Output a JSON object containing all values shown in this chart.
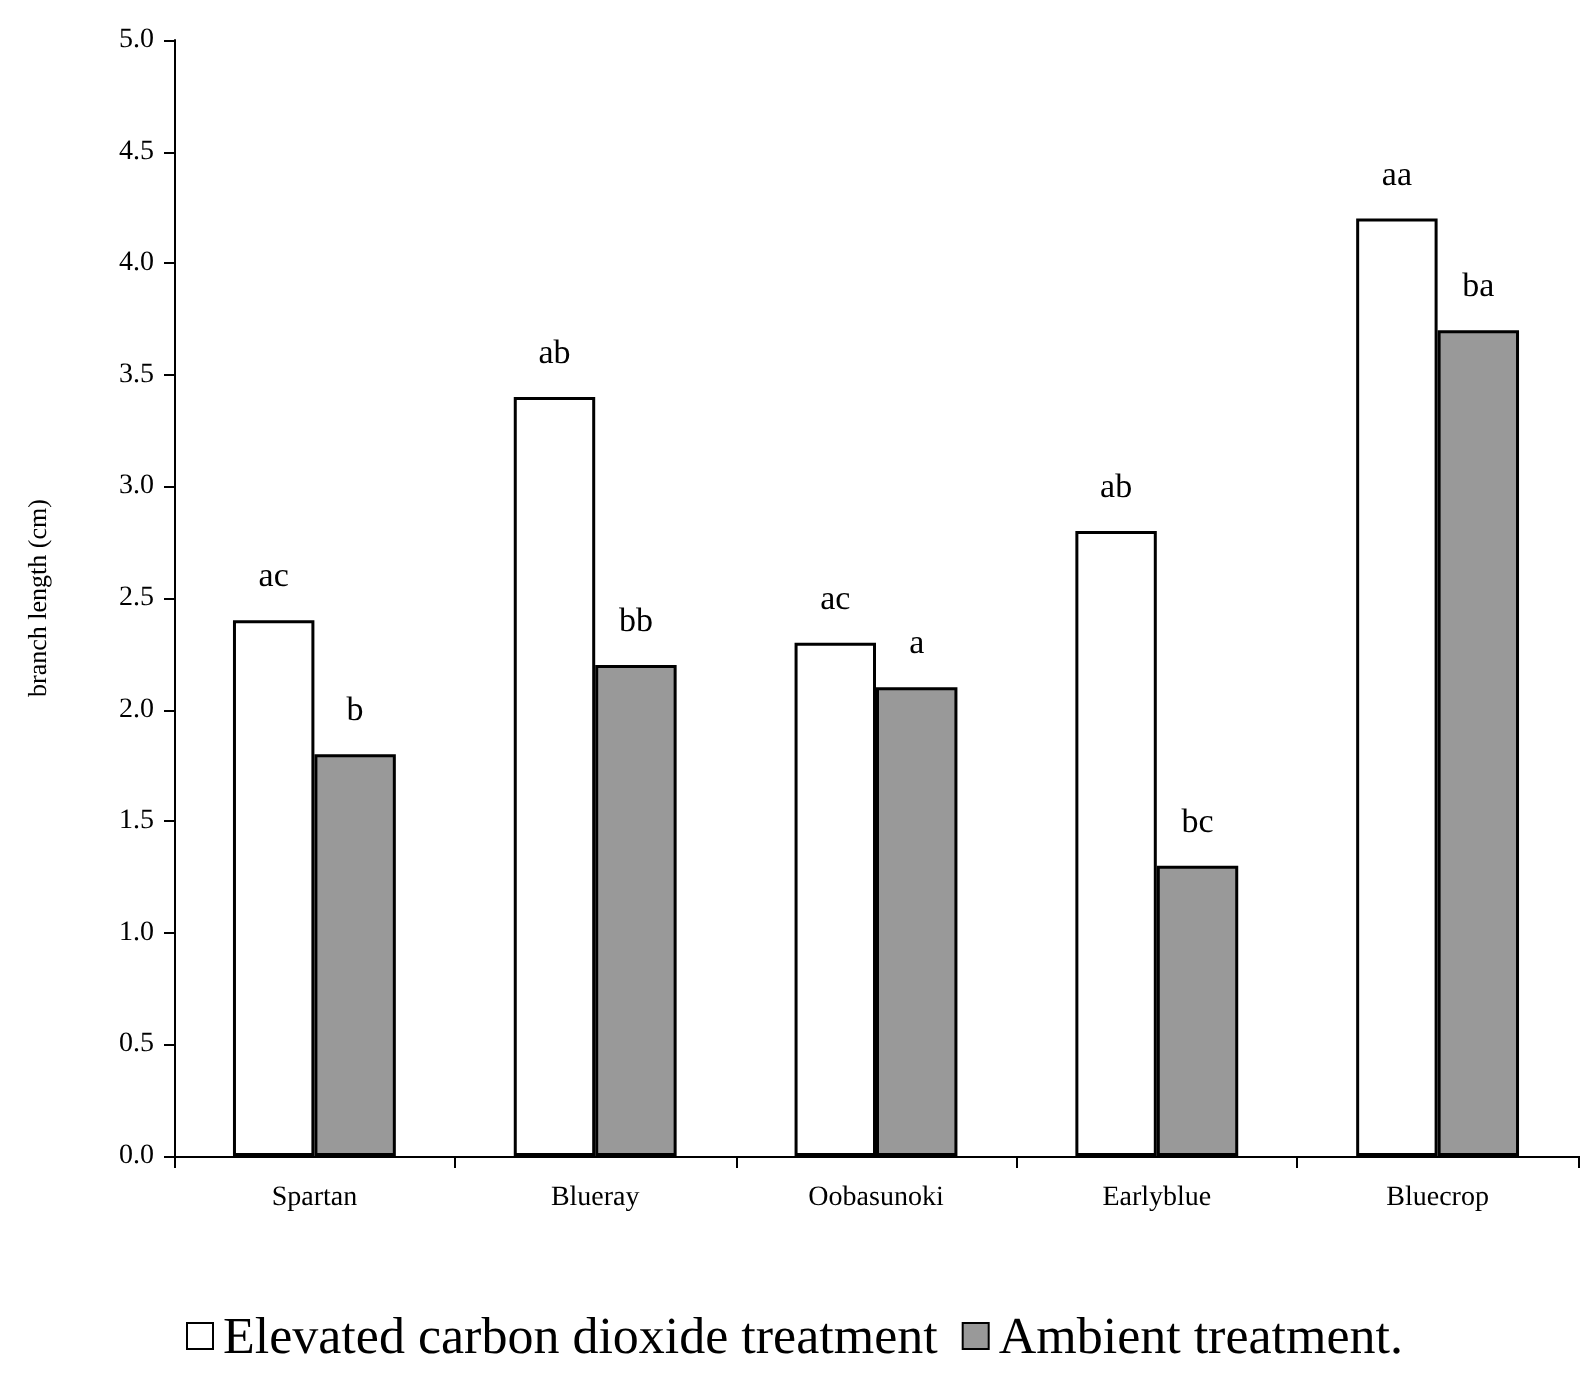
{
  "chart_data": {
    "type": "bar",
    "ylabel": "branch length (cm)",
    "categories": [
      "Spartan",
      "Blueray",
      "Oobasunoki",
      "Earlyblue",
      "Bluecrop"
    ],
    "series": [
      {
        "name": "Elevated carbon dioxide treatment",
        "color": "#ffffff",
        "values": [
          2.4,
          3.4,
          2.3,
          2.8,
          4.2
        ],
        "value_labels": [
          "ac",
          "ab",
          "ac",
          "ab",
          "aa"
        ]
      },
      {
        "name": "Ambient treatment.",
        "color": "#999999",
        "values": [
          1.8,
          2.2,
          2.1,
          1.3,
          3.7
        ],
        "value_labels": [
          "b",
          "bb",
          "a",
          "bc",
          "ba"
        ]
      }
    ],
    "ylim": [
      0,
      5
    ],
    "yticks": [
      {
        "value": 0,
        "label": "0.0"
      },
      {
        "value": 0.5,
        "label": "0.5"
      },
      {
        "value": 1,
        "label": "1.0"
      },
      {
        "value": 1.5,
        "label": "1.5"
      },
      {
        "value": 2,
        "label": "2.0"
      },
      {
        "value": 2.5,
        "label": "2.5"
      },
      {
        "value": 3,
        "label": "3.0"
      },
      {
        "value": 3.5,
        "label": "3.5"
      },
      {
        "value": 4,
        "label": "4.0"
      },
      {
        "value": 4.5,
        "label": "4.5"
      },
      {
        "value": 5,
        "label": "5.0"
      }
    ],
    "legend": "bottom"
  }
}
